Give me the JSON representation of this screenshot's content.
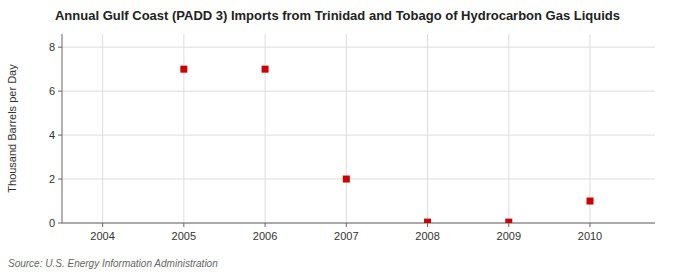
{
  "chart_data": {
    "type": "scatter",
    "title": "Annual Gulf Coast (PADD 3) Imports from Trinidad and Tobago of Hydrocarbon Gas Liquids",
    "y_label": "Thousand Barrels per Day",
    "annotation": "Source: U.S. Energy Information Administration",
    "x": [
      2005,
      2006,
      2007,
      2008,
      2009,
      2010
    ],
    "values": [
      7,
      7,
      2,
      0.04,
      0.04,
      1
    ],
    "xlim": [
      2003.5,
      2010.8
    ],
    "ylim": [
      0,
      8.6
    ],
    "xticks": [
      2004,
      2005,
      2006,
      2007,
      2008,
      2009,
      2010
    ],
    "yticks": [
      0,
      2,
      4,
      6,
      8
    ],
    "color": "#cc0000",
    "marker": "square",
    "grid": true
  }
}
